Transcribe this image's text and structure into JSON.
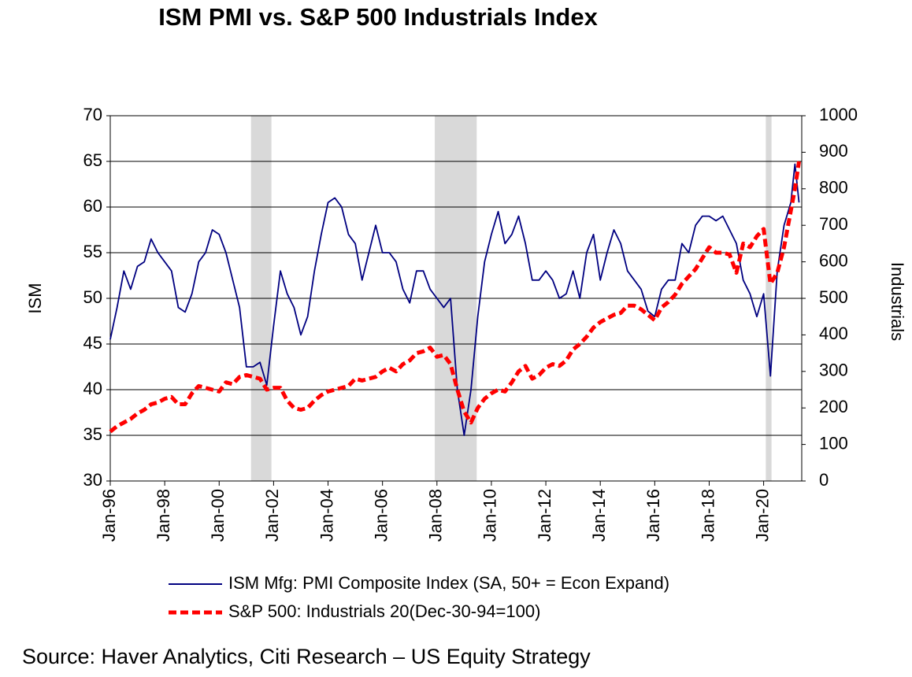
{
  "chart_data": {
    "type": "line",
    "title": "ISM PMI vs. S&P 500 Industrials Index",
    "ylabel": "ISM",
    "y2label": "Industrials",
    "source": "Source: Haver Analytics, Citi Research – US Equity Strategy",
    "x": [
      1996,
      1996.25,
      1996.5,
      1996.75,
      1997,
      1997.25,
      1997.5,
      1997.75,
      1998,
      1998.25,
      1998.5,
      1998.75,
      1999,
      1999.25,
      1999.5,
      1999.75,
      2000,
      2000.25,
      2000.5,
      2000.75,
      2001,
      2001.25,
      2001.5,
      2001.75,
      2002,
      2002.25,
      2002.5,
      2002.75,
      2003,
      2003.25,
      2003.5,
      2003.75,
      2004,
      2004.25,
      2004.5,
      2004.75,
      2005,
      2005.25,
      2005.5,
      2005.75,
      2006,
      2006.25,
      2006.5,
      2006.75,
      2007,
      2007.25,
      2007.5,
      2007.75,
      2008,
      2008.25,
      2008.5,
      2008.75,
      2009,
      2009.25,
      2009.5,
      2009.75,
      2010,
      2010.25,
      2010.5,
      2010.75,
      2011,
      2011.25,
      2011.5,
      2011.75,
      2012,
      2012.25,
      2012.5,
      2012.75,
      2013,
      2013.25,
      2013.5,
      2013.75,
      2014,
      2014.25,
      2014.5,
      2014.75,
      2015,
      2015.25,
      2015.5,
      2015.75,
      2016,
      2016.25,
      2016.5,
      2016.75,
      2017,
      2017.25,
      2017.5,
      2017.75,
      2018,
      2018.25,
      2018.5,
      2018.75,
      2019,
      2019.25,
      2019.5,
      2019.75,
      2020,
      2020.25,
      2020.5,
      2020.75,
      2021,
      2021.15,
      2021.3
    ],
    "series": [
      {
        "name": "ISM Mfg: PMI Composite Index (SA, 50+ = Econ Expand)",
        "color": "#000080",
        "axis": "y",
        "values": [
          45.5,
          49,
          53,
          51,
          53.5,
          54,
          56.5,
          55,
          54,
          53,
          49,
          48.5,
          50.5,
          54,
          55,
          57.5,
          57,
          55,
          52,
          49,
          42.5,
          42.5,
          43,
          40.5,
          47,
          53,
          50.5,
          49,
          46,
          48,
          53,
          57,
          60.5,
          61,
          60,
          57,
          56,
          52,
          55,
          58,
          55,
          55,
          54,
          51,
          49.5,
          53,
          53,
          51,
          50,
          49,
          50,
          40,
          35,
          40,
          48,
          54,
          57,
          59.5,
          56,
          57,
          59,
          56,
          52,
          52,
          53,
          52,
          50,
          50.5,
          53,
          50,
          55,
          57,
          52,
          55,
          57.5,
          56,
          53,
          52,
          51,
          48.6,
          48,
          51,
          52,
          52,
          56,
          55,
          58,
          59,
          59,
          58.5,
          59,
          57.5,
          56,
          52,
          50.5,
          48,
          50.5,
          41.5,
          53,
          58,
          60.5,
          64.7,
          60.5
        ]
      },
      {
        "name": "S&P 500: Industrials 20(Dec-30-94=100)",
        "color": "#ff0000",
        "axis": "y2",
        "dashed": true,
        "values": [
          135,
          150,
          160,
          170,
          185,
          195,
          210,
          215,
          225,
          230,
          210,
          210,
          240,
          260,
          255,
          250,
          245,
          270,
          265,
          285,
          290,
          285,
          280,
          250,
          255,
          255,
          220,
          200,
          195,
          200,
          220,
          235,
          245,
          250,
          255,
          260,
          280,
          275,
          280,
          285,
          300,
          310,
          300,
          320,
          330,
          350,
          355,
          365,
          340,
          345,
          320,
          250,
          190,
          160,
          200,
          225,
          240,
          250,
          245,
          270,
          300,
          315,
          280,
          290,
          310,
          320,
          315,
          330,
          360,
          375,
          395,
          420,
          435,
          445,
          455,
          460,
          480,
          480,
          470,
          455,
          440,
          475,
          490,
          510,
          540,
          560,
          580,
          610,
          640,
          625,
          625,
          620,
          570,
          650,
          640,
          670,
          690,
          540,
          570,
          640,
          740,
          800,
          875
        ]
      }
    ],
    "recessions": [
      [
        2001.17,
        2001.92
      ],
      [
        2007.92,
        2009.46
      ],
      [
        2020.08,
        2020.29
      ]
    ],
    "recession_color": "#d9d9d9",
    "xlim": [
      1996,
      2021.4
    ],
    "xticks": [
      {
        "value": 1996,
        "label": "Jan-96"
      },
      {
        "value": 1998,
        "label": "Jan-98"
      },
      {
        "value": 2000,
        "label": "Jan-00"
      },
      {
        "value": 2002,
        "label": "Jan-02"
      },
      {
        "value": 2004,
        "label": "Jan-04"
      },
      {
        "value": 2006,
        "label": "Jan-06"
      },
      {
        "value": 2008,
        "label": "Jan-08"
      },
      {
        "value": 2010,
        "label": "Jan-10"
      },
      {
        "value": 2012,
        "label": "Jan-12"
      },
      {
        "value": 2014,
        "label": "Jan-14"
      },
      {
        "value": 2016,
        "label": "Jan-16"
      },
      {
        "value": 2018,
        "label": "Jan-18"
      },
      {
        "value": 2020,
        "label": "Jan-20"
      }
    ],
    "ylim": [
      30,
      70
    ],
    "yticks": [
      30,
      35,
      40,
      45,
      50,
      55,
      60,
      65,
      70
    ],
    "y2lim": [
      0,
      1000
    ],
    "y2ticks": [
      0,
      100,
      200,
      300,
      400,
      500,
      600,
      700,
      800,
      900,
      1000
    ],
    "grid": true,
    "legend": "bottom"
  }
}
